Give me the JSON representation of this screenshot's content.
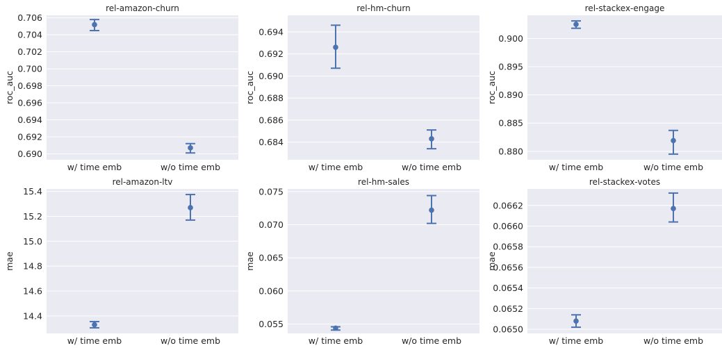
{
  "chart_data": [
    {
      "type": "scatter",
      "title": "rel-amazon-churn",
      "xlabel": "",
      "ylabel": "roc_auc",
      "categories": [
        "w/ time emb",
        "w/o time emb"
      ],
      "values": [
        0.7052,
        0.6907
      ],
      "error_low": [
        0.7045,
        0.6901
      ],
      "error_high": [
        0.7058,
        0.6912
      ],
      "ylim": [
        0.6893,
        0.7063
      ],
      "yticks": [
        0.69,
        0.692,
        0.694,
        0.696,
        0.698,
        0.7,
        0.702,
        0.704,
        0.706
      ],
      "ytick_labels": [
        "0.690",
        "0.692",
        "0.694",
        "0.696",
        "0.698",
        "0.700",
        "0.702",
        "0.704",
        "0.706"
      ],
      "grid": true
    },
    {
      "type": "scatter",
      "title": "rel-hm-churn",
      "xlabel": "",
      "ylabel": "roc_auc",
      "categories": [
        "w/ time emb",
        "w/o time emb"
      ],
      "values": [
        0.6926,
        0.6843
      ],
      "error_low": [
        0.6907,
        0.6834
      ],
      "error_high": [
        0.6946,
        0.6851
      ],
      "ylim": [
        0.6824,
        0.6955
      ],
      "yticks": [
        0.684,
        0.686,
        0.688,
        0.69,
        0.692,
        0.694
      ],
      "ytick_labels": [
        "0.684",
        "0.686",
        "0.688",
        "0.690",
        "0.692",
        "0.694"
      ],
      "grid": true
    },
    {
      "type": "scatter",
      "title": "rel-stackex-engage",
      "xlabel": "",
      "ylabel": "roc_auc",
      "categories": [
        "w/ time emb",
        "w/o time emb"
      ],
      "values": [
        0.9025,
        0.8819
      ],
      "error_low": [
        0.9018,
        0.8795
      ],
      "error_high": [
        0.9031,
        0.8837
      ],
      "ylim": [
        0.8785,
        0.9041
      ],
      "yticks": [
        0.88,
        0.885,
        0.89,
        0.895,
        0.9
      ],
      "ytick_labels": [
        "0.880",
        "0.885",
        "0.890",
        "0.895",
        "0.900"
      ],
      "grid": true
    },
    {
      "type": "scatter",
      "title": "rel-amazon-ltv",
      "xlabel": "",
      "ylabel": "mae",
      "categories": [
        "w/ time emb",
        "w/o time emb"
      ],
      "values": [
        14.33,
        15.27
      ],
      "error_low": [
        14.305,
        15.17
      ],
      "error_high": [
        14.355,
        15.375
      ],
      "ylim": [
        14.26,
        15.42
      ],
      "yticks": [
        14.4,
        14.6,
        14.8,
        15.0,
        15.2,
        15.4
      ],
      "ytick_labels": [
        "14.4",
        "14.6",
        "14.8",
        "15.0",
        "15.2",
        "15.4"
      ],
      "grid": true
    },
    {
      "type": "scatter",
      "title": "rel-hm-sales",
      "xlabel": "",
      "ylabel": "mae",
      "categories": [
        "w/ time emb",
        "w/o time emb"
      ],
      "values": [
        0.0544,
        0.0722
      ],
      "error_low": [
        0.0541,
        0.0702
      ],
      "error_high": [
        0.0546,
        0.0744
      ],
      "ylim": [
        0.0536,
        0.0754
      ],
      "yticks": [
        0.055,
        0.06,
        0.065,
        0.07,
        0.075
      ],
      "ytick_labels": [
        "0.055",
        "0.060",
        "0.065",
        "0.070",
        "0.075"
      ],
      "grid": true
    },
    {
      "type": "scatter",
      "title": "rel-stackex-votes",
      "xlabel": "",
      "ylabel": "mae",
      "categories": [
        "w/ time emb",
        "w/o time emb"
      ],
      "values": [
        0.06508,
        0.06617
      ],
      "error_low": [
        0.06502,
        0.06604
      ],
      "error_high": [
        0.06514,
        0.06632
      ],
      "ylim": [
        0.06496,
        0.06636
      ],
      "yticks": [
        0.065,
        0.0652,
        0.0654,
        0.0656,
        0.0658,
        0.066,
        0.0662
      ],
      "ytick_labels": [
        "0.0650",
        "0.0652",
        "0.0654",
        "0.0656",
        "0.0658",
        "0.0660",
        "0.0662"
      ],
      "grid": true
    }
  ],
  "colors": {
    "plot_background": "#eaeaf2",
    "grid": "#ffffff",
    "marker": "#4c72b0",
    "text": "#262626"
  }
}
